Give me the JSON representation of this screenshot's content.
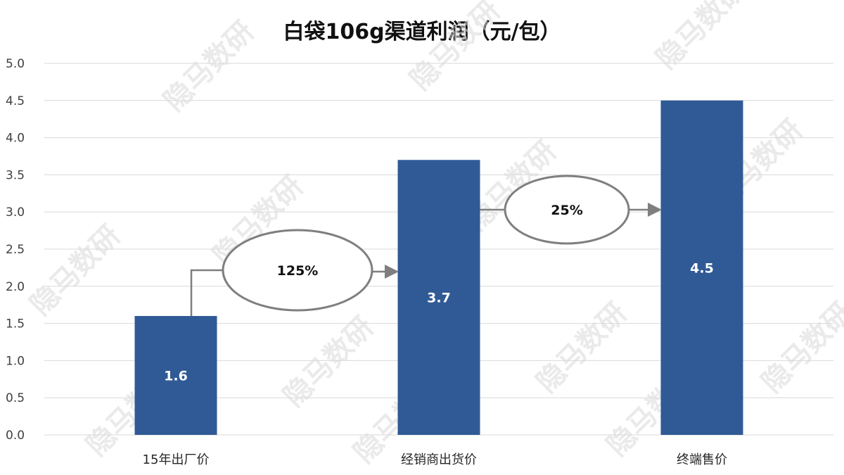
{
  "chart_data": {
    "type": "bar",
    "title": "白袋106g渠道利润（元/包）",
    "categories": [
      "15年出厂价",
      "经销商出货价",
      "终端售价"
    ],
    "values": [
      1.6,
      3.7,
      4.5
    ],
    "data_labels": [
      "1.6",
      "3.7",
      "4.5"
    ],
    "ylim": [
      0,
      5.0
    ],
    "yticks": [
      "0.0",
      "0.5",
      "1.0",
      "1.5",
      "2.0",
      "2.5",
      "3.0",
      "3.5",
      "4.0",
      "4.5",
      "5.0"
    ],
    "grid": true,
    "bar_color": "#2F5A96",
    "annotations": [
      {
        "from": "15年出厂价",
        "to": "经销商出货价",
        "text": "125%"
      },
      {
        "from": "经销商出货价",
        "to": "终端售价",
        "text": "25%"
      }
    ]
  },
  "watermark": "隐马数研"
}
